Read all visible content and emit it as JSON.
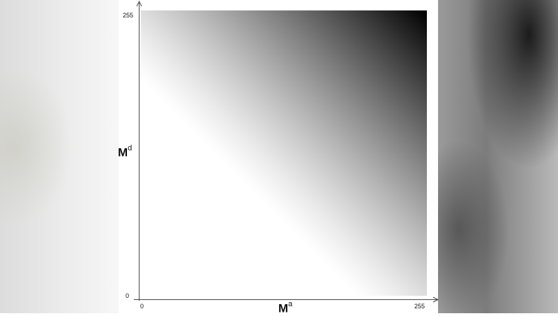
{
  "y_axis": {
    "label_base": "M",
    "label_sup": "d",
    "tick_min": "0",
    "tick_max": "255"
  },
  "x_axis": {
    "label_base": "M",
    "label_sup": "a",
    "tick_min": "0",
    "tick_max": "255"
  },
  "heatmap": {
    "range": [
      0,
      255
    ],
    "depth": 8,
    "min_color": "#ffffff",
    "max_color": "#000000"
  }
}
